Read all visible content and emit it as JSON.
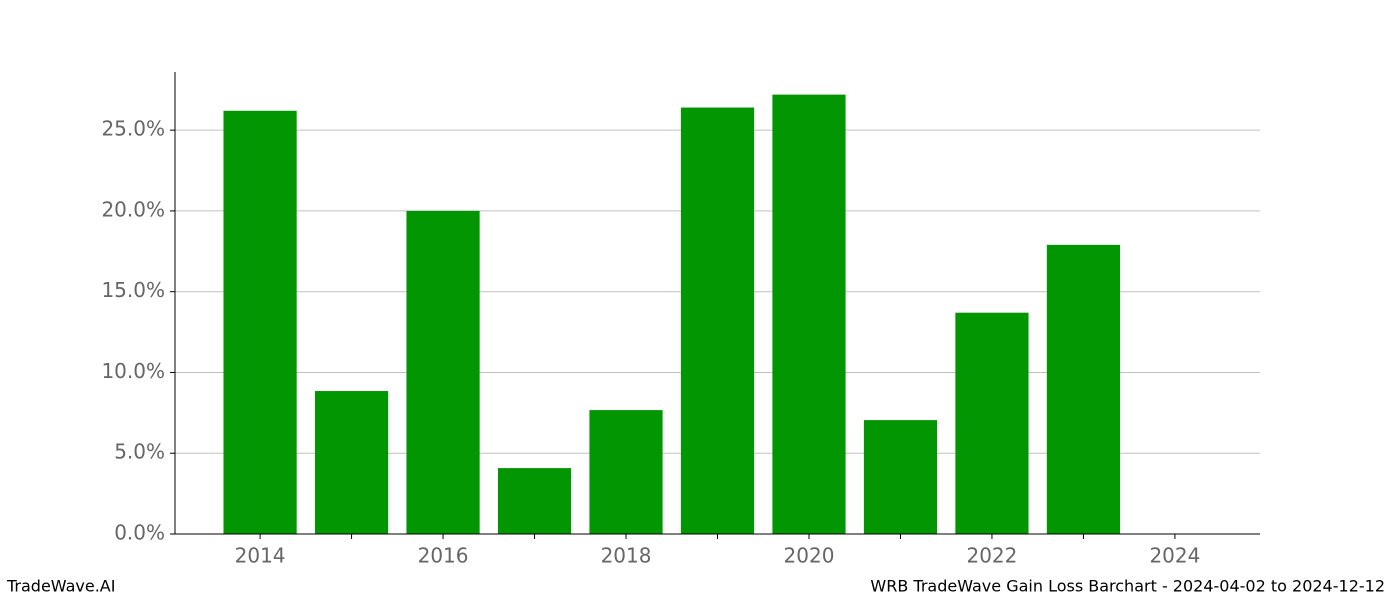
{
  "chart_data": {
    "type": "bar",
    "x": [
      2014,
      2015,
      2016,
      2017,
      2018,
      2019,
      2020,
      2021,
      2022,
      2023
    ],
    "values": [
      26.2,
      8.85,
      20.0,
      4.08,
      7.67,
      26.4,
      27.2,
      7.05,
      13.7,
      17.9
    ],
    "color": "#029702",
    "xlim": [
      2013.07,
      2024.93
    ],
    "xticks": [
      2014,
      2016,
      2018,
      2020,
      2022,
      2024
    ],
    "x_minor_ticks": [
      2015,
      2017,
      2019,
      2021,
      2023
    ],
    "ylim": [
      0,
      28.6
    ],
    "yticks": [
      {
        "value": 0,
        "label": "0.0%"
      },
      {
        "value": 5,
        "label": "5.0%"
      },
      {
        "value": 10,
        "label": "10.0%"
      },
      {
        "value": 15,
        "label": "15.0%"
      },
      {
        "value": 20,
        "label": "20.0%"
      },
      {
        "value": 25,
        "label": "25.0%"
      }
    ],
    "grid": true,
    "watermark": "TradeWave.AI",
    "footer_title": "WRB TradeWave Gain Loss Barchart - 2024-04-02 to 2024-12-12"
  }
}
